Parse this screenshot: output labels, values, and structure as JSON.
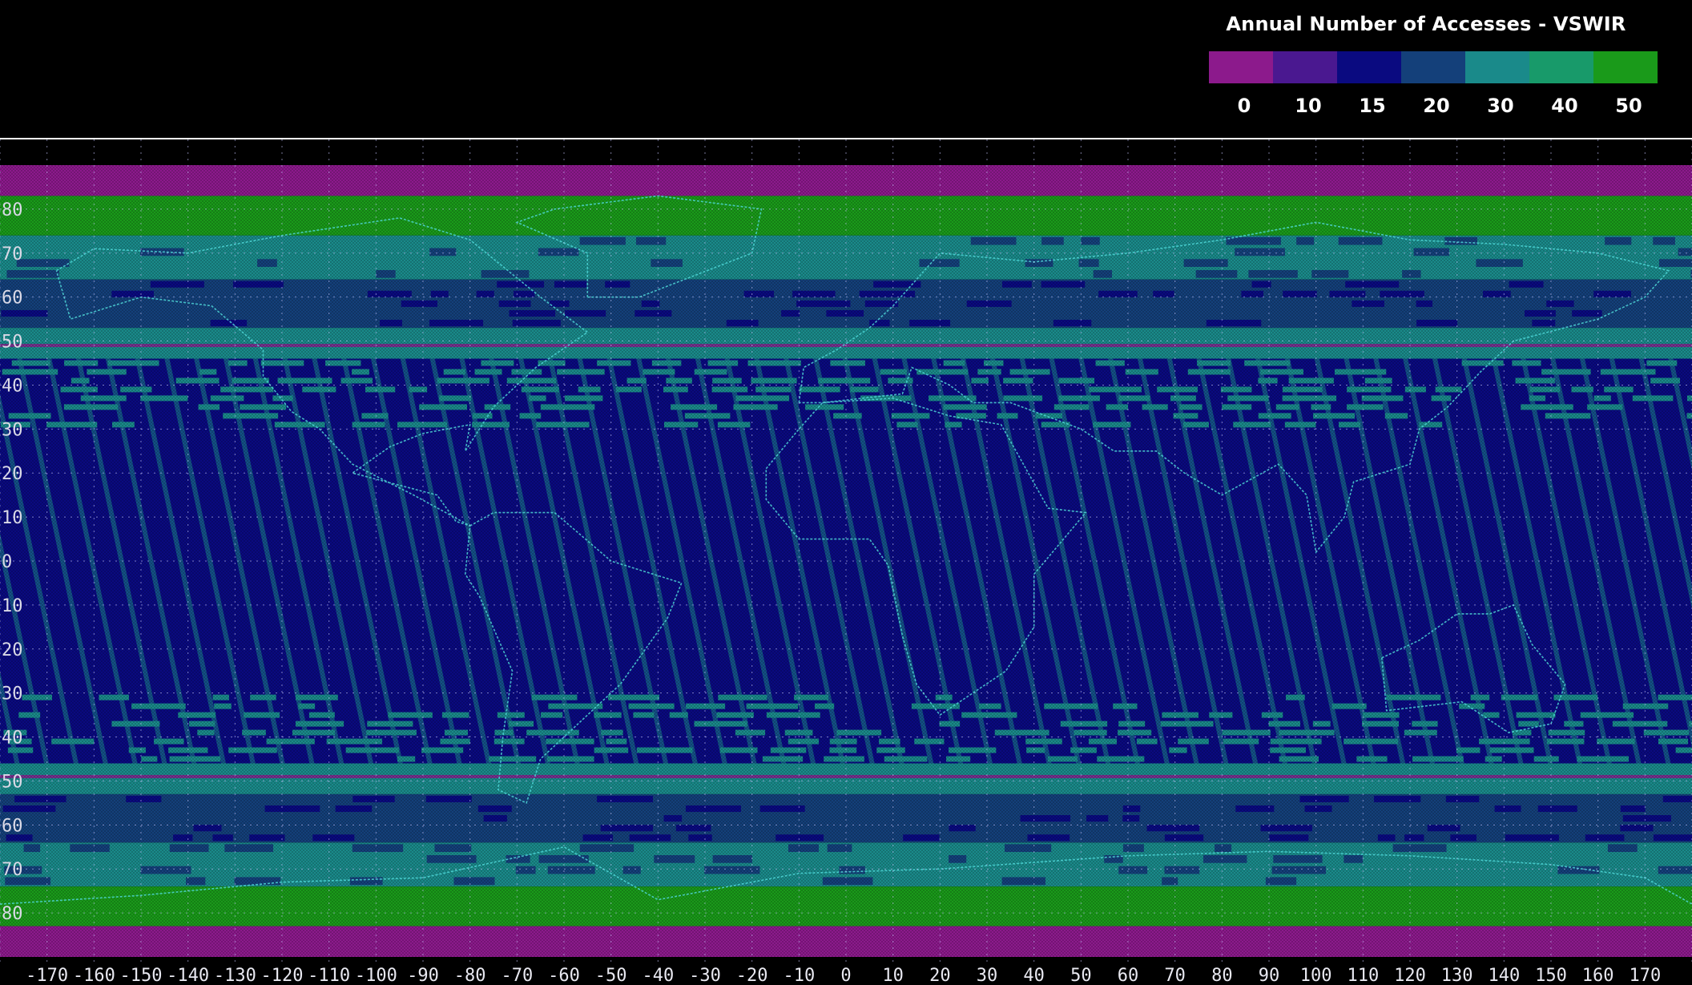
{
  "legend": {
    "title": "Annual Number of Accesses - VSWIR",
    "bins": [
      {
        "label": "0",
        "color": "#8c1a8c"
      },
      {
        "label": "10",
        "color": "#4a1890"
      },
      {
        "label": "15",
        "color": "#0a0a80"
      },
      {
        "label": "20",
        "color": "#14407a"
      },
      {
        "label": "30",
        "color": "#1a8a8a"
      },
      {
        "label": "40",
        "color": "#189a6a"
      },
      {
        "label": "50",
        "color": "#1a9a1a"
      }
    ]
  },
  "map": {
    "lat_labels": [
      "80",
      "70",
      "60",
      "50",
      "40",
      "30",
      "20",
      "10",
      "0",
      "10",
      "20",
      "30",
      "40",
      "50",
      "60",
      "70",
      "80"
    ],
    "lon_labels": [
      "-170",
      "-160",
      "-150",
      "-140",
      "-130",
      "-120",
      "-110",
      "-100",
      "-90",
      "-80",
      "-70",
      "-60",
      "-50",
      "-40",
      "-30",
      "-20",
      "-10",
      "0",
      "10",
      "20",
      "30",
      "40",
      "50",
      "60",
      "70",
      "80",
      "90",
      "100",
      "110",
      "120",
      "130",
      "140",
      "150",
      "160",
      "170"
    ],
    "colors": {
      "band_magenta": "#8c1a8c",
      "band_green": "#1a9a1a",
      "band_teal": "#1a8a8a",
      "band_steel": "#14407a",
      "band_navy": "#0a0a80",
      "coastline": "#4fd6d6",
      "grid": "#c8c8ff"
    }
  }
}
